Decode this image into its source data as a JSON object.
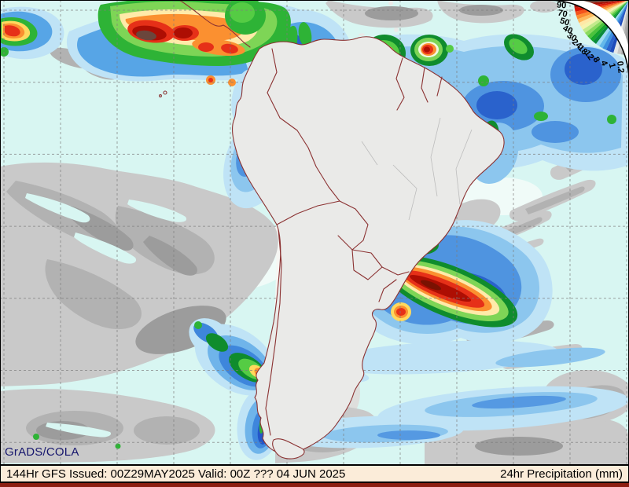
{
  "map": {
    "credit": "GrADS/COLA",
    "ocean_color": "#d8f6f2",
    "land_color": "#eaeae8",
    "coast_border_color": "#8b3232",
    "credit_color": "#17176e"
  },
  "legend": {
    "values": [
      "90",
      "70",
      "50",
      "40",
      "30",
      "24",
      "18",
      "12",
      "8",
      "4",
      "1",
      "0.2"
    ],
    "colors": [
      "#6b463c",
      "#a81206",
      "#d91708",
      "#f4531c",
      "#fd8c30",
      "#feba5d",
      "#ffe8a6",
      "#f6f3ae",
      "#c2ea8b",
      "#8ada5e",
      "#4cc23c",
      "#17a52b",
      "#0b8b3c",
      "#9edcf2",
      "#63b8ea",
      "#3b8fdf",
      "#2a62cc",
      "#1e4bbb",
      "#e6e6e6",
      "#c9c9c9",
      "#ababab",
      "#8d8d8d"
    ]
  },
  "status_bar": {
    "left_text": "144Hr GFS Issued: 00Z29MAY2025 Valid: 00Z ??? 04 JUN 2025",
    "right_text": "24hr Precipitation (mm)",
    "background": "#fbecd9",
    "strip_color": "#8c1e12"
  }
}
